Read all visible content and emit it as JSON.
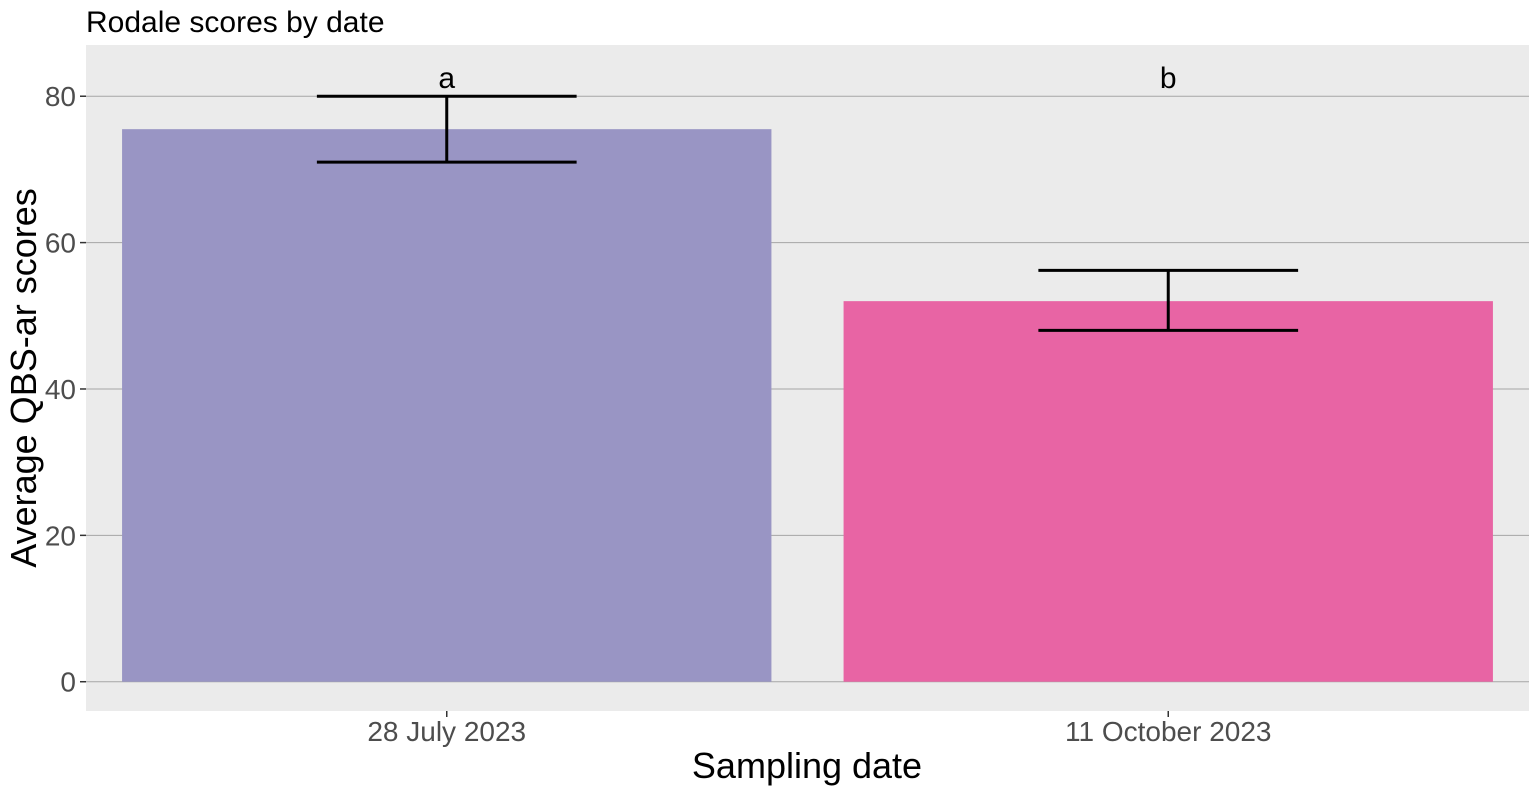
{
  "chart_data": {
    "type": "bar",
    "title": "Rodale scores by date",
    "xlabel": "Sampling date",
    "ylabel": "Average QBS-ar scores",
    "categories": [
      "28 July 2023",
      "11 October 2023"
    ],
    "values": [
      75.5,
      52
    ],
    "error_low": [
      71,
      48
    ],
    "error_high": [
      80,
      56.2
    ],
    "significance_labels": [
      "a",
      "b"
    ],
    "colors": [
      "#9995c4",
      "#e864a4"
    ],
    "ylim": [
      -4,
      87
    ],
    "yticks": [
      0,
      20,
      40,
      60,
      80
    ],
    "ytick_labels": [
      "0",
      "20",
      "40",
      "60",
      "80"
    ],
    "grid": true,
    "panel_background": "#ebebeb",
    "grid_color": "#a6a6a6"
  }
}
